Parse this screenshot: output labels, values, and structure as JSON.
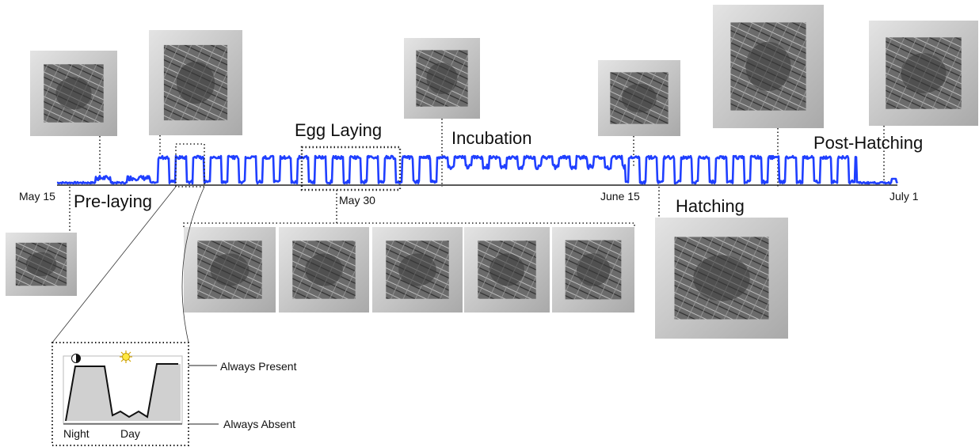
{
  "dates": [
    "May 15",
    "May 30",
    "June 15",
    "July 1"
  ],
  "phases": {
    "pre_laying": "Pre-laying",
    "egg_laying": "Egg Laying",
    "incubation": "Incubation",
    "hatching": "Hatching",
    "post_hatching": "Post-Hatching"
  },
  "inset": {
    "night": "Night",
    "day": "Day",
    "always_present": "Always Present",
    "always_absent": "Always Absent"
  }
}
